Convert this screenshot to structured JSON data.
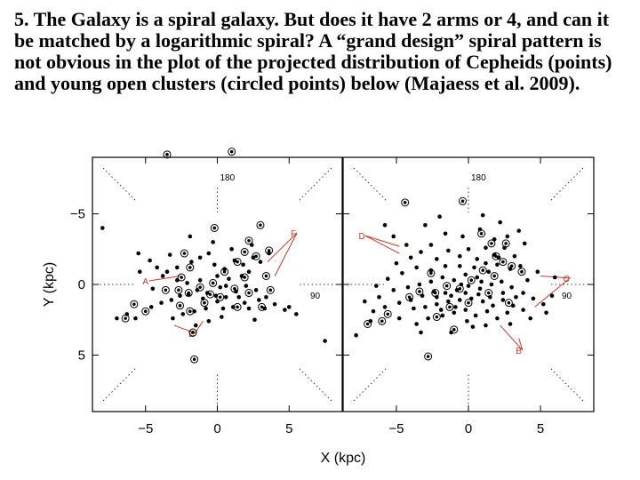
{
  "caption": "5. The Galaxy is a spiral galaxy. But does it have 2 arms or 4, and can it be matched by a logarithmic spiral? A “grand design” spiral pattern is not obvious in the plot of the projected distribution of Cepheids (points) and young open clusters (circled points) below (Majaess et al. 2009).",
  "chart_data": {
    "type": "scatter",
    "xlabel": "X (kpc)",
    "ylabel": "Y (kpc)",
    "xlim": [
      -8.7,
      8.7
    ],
    "ylim": [
      -9,
      9
    ],
    "y_axis_inverted": true,
    "xticks": [
      "−5",
      "0",
      "5"
    ],
    "yticks": [
      "−5",
      "0",
      "5"
    ],
    "xtick_values": [
      -5,
      0,
      5
    ],
    "ytick_values": [
      -5,
      0,
      5
    ],
    "panels": [
      {
        "name": "left",
        "direction_labels": [
          "180",
          "90"
        ],
        "feature_labels": [
          {
            "text": "F",
            "x": 5.3,
            "y": -3.4,
            "line_to": [
              [
                3.5,
                -1.6
              ],
              [
                4.0,
                -0.6
              ]
            ]
          },
          {
            "text": "A",
            "x": -5.0,
            "y": 0.0,
            "line_to": [
              [
                -2.6,
                -0.6
              ]
            ]
          },
          {
            "text": "E",
            "x": -1.8,
            "y": 3.7,
            "line_to": [
              [
                -1.0,
                2.6
              ],
              [
                -3.0,
                2.9
              ]
            ]
          }
        ],
        "cepheids": [
          [
            -8.0,
            -4.0
          ],
          [
            -5.5,
            -2.2
          ],
          [
            -4.7,
            -1.7
          ],
          [
            -3.3,
            -2.1
          ],
          [
            -4.2,
            -1.2
          ],
          [
            -3.5,
            -0.9
          ],
          [
            -2.8,
            -0.3
          ],
          [
            -1.8,
            -1.6
          ],
          [
            -1.2,
            -1.9
          ],
          [
            -0.6,
            -2.2
          ],
          [
            -0.2,
            -1.4
          ],
          [
            0.5,
            -1.1
          ],
          [
            1.2,
            -1.7
          ],
          [
            1.8,
            -1.4
          ],
          [
            2.5,
            -1.9
          ],
          [
            3.0,
            -1.6
          ],
          [
            2.2,
            -0.9
          ],
          [
            1.7,
            -0.6
          ],
          [
            0.8,
            -0.4
          ],
          [
            0.2,
            0.2
          ],
          [
            -0.7,
            0.6
          ],
          [
            -1.4,
            0.4
          ],
          [
            -2.0,
            0.7
          ],
          [
            -2.6,
            0.8
          ],
          [
            -3.2,
            1.1
          ],
          [
            -3.9,
            1.3
          ],
          [
            -4.6,
            1.6
          ],
          [
            -5.7,
            2.4
          ],
          [
            -6.3,
            2.1
          ],
          [
            -7.0,
            2.4
          ],
          [
            -3.1,
            2.4
          ],
          [
            -2.4,
            2.1
          ],
          [
            -1.6,
            1.9
          ],
          [
            -0.8,
            1.7
          ],
          [
            0.0,
            1.2
          ],
          [
            0.6,
            0.9
          ],
          [
            1.3,
            0.5
          ],
          [
            2.0,
            0.1
          ],
          [
            2.7,
            0.4
          ],
          [
            3.4,
            0.9
          ],
          [
            4.0,
            1.4
          ],
          [
            4.7,
            1.8
          ],
          [
            5.0,
            1.6
          ],
          [
            5.5,
            2.1
          ],
          [
            1.1,
            1.6
          ],
          [
            1.9,
            1.3
          ],
          [
            0.3,
            2.3
          ],
          [
            -0.6,
            2.6
          ],
          [
            -1.5,
            2.9
          ],
          [
            2.6,
            2.5
          ],
          [
            3.3,
            1.7
          ],
          [
            -2.1,
            -0.1
          ],
          [
            -1.2,
            -0.3
          ],
          [
            0.0,
            -0.6
          ],
          [
            1.0,
            -2.5
          ],
          [
            2.4,
            -2.8
          ],
          [
            3.6,
            -2.2
          ],
          [
            -0.3,
            -3.0
          ],
          [
            -1.9,
            -3.4
          ],
          [
            0.6,
            0.1
          ],
          [
            -0.1,
            0.8
          ],
          [
            -2.8,
            -1.2
          ],
          [
            -3.8,
            -0.6
          ],
          [
            1.5,
            0.9
          ],
          [
            2.2,
            1.7
          ],
          [
            2.9,
            1.1
          ],
          [
            -4.5,
            0.3
          ],
          [
            -5.4,
            -0.9
          ],
          [
            -1.0,
            1.0
          ],
          [
            0.4,
            1.7
          ],
          [
            7.5,
            4.0
          ]
        ],
        "clusters": [
          [
            -3.5,
            -9.2
          ],
          [
            1.0,
            -9.4
          ],
          [
            -0.2,
            -4.0
          ],
          [
            3.0,
            -4.2
          ],
          [
            2.2,
            -3.1
          ],
          [
            3.6,
            -2.4
          ],
          [
            2.7,
            -2.0
          ],
          [
            1.9,
            -2.3
          ],
          [
            1.4,
            -1.6
          ],
          [
            -2.3,
            -2.2
          ],
          [
            -1.9,
            -1.2
          ],
          [
            -0.3,
            -0.1
          ],
          [
            0.5,
            -0.9
          ],
          [
            1.9,
            -0.5
          ],
          [
            3.4,
            -0.6
          ],
          [
            3.7,
            0.4
          ],
          [
            2.2,
            0.6
          ],
          [
            1.2,
            0.3
          ],
          [
            0.2,
            0.9
          ],
          [
            -0.5,
            0.7
          ],
          [
            -1.2,
            0.2
          ],
          [
            -2.0,
            0.6
          ],
          [
            -2.7,
            0.4
          ],
          [
            -3.6,
            0.4
          ],
          [
            -1.9,
            1.9
          ],
          [
            -0.9,
            1.3
          ],
          [
            -2.6,
            1.5
          ],
          [
            -5.0,
            1.9
          ],
          [
            -5.8,
            1.4
          ],
          [
            -6.4,
            2.4
          ],
          [
            1.4,
            1.6
          ],
          [
            3.1,
            1.6
          ],
          [
            -1.7,
            3.4
          ],
          [
            -2.5,
            -0.5
          ],
          [
            -1.6,
            5.3
          ]
        ]
      },
      {
        "name": "right",
        "direction_labels": [
          "180",
          "90"
        ],
        "feature_labels": [
          {
            "text": "D",
            "x": -7.4,
            "y": -3.2,
            "line_to": [
              [
                -4.8,
                -2.7
              ],
              [
                -4.8,
                -2.2
              ]
            ]
          },
          {
            "text": "C",
            "x": 6.8,
            "y": -0.2,
            "line_to": [
              [
                5.0,
                -0.6
              ],
              [
                4.6,
                1.6
              ]
            ]
          },
          {
            "text": "B",
            "x": 3.5,
            "y": 4.9,
            "line_to": [
              [
                2.2,
                2.9
              ],
              [
                3.5,
                3.8
              ]
            ]
          }
        ],
        "cepheids": [
          [
            -5.8,
            -4.2
          ],
          [
            -5.2,
            -3.4
          ],
          [
            -4.3,
            -2.8
          ],
          [
            -3.3,
            -2.3
          ],
          [
            -2.6,
            -2.8
          ],
          [
            -2.2,
            -1.8
          ],
          [
            -1.4,
            -2.4
          ],
          [
            -0.6,
            -2.0
          ],
          [
            0.0,
            -2.5
          ],
          [
            0.6,
            -1.8
          ],
          [
            1.2,
            -2.6
          ],
          [
            1.8,
            -2.1
          ],
          [
            2.5,
            -2.6
          ],
          [
            3.2,
            -2.0
          ],
          [
            2.9,
            -1.1
          ],
          [
            2.0,
            -1.4
          ],
          [
            1.4,
            -0.9
          ],
          [
            0.6,
            -0.5
          ],
          [
            -0.2,
            -0.7
          ],
          [
            -1.0,
            -0.3
          ],
          [
            -1.8,
            -0.5
          ],
          [
            -2.6,
            -0.2
          ],
          [
            -3.4,
            0.0
          ],
          [
            -4.2,
            0.2
          ],
          [
            -5.2,
            0.4
          ],
          [
            -6.2,
            0.9
          ],
          [
            -7.2,
            1.2
          ],
          [
            -6.6,
            1.9
          ],
          [
            -5.8,
            1.6
          ],
          [
            -4.8,
            1.3
          ],
          [
            -4.0,
            1.1
          ],
          [
            -3.2,
            0.8
          ],
          [
            -2.4,
            0.5
          ],
          [
            -1.6,
            0.6
          ],
          [
            -0.8,
            0.4
          ],
          [
            0.0,
            0.1
          ],
          [
            0.8,
            0.3
          ],
          [
            1.6,
            0.0
          ],
          [
            2.3,
            -0.2
          ],
          [
            3.0,
            0.2
          ],
          [
            3.8,
            0.6
          ],
          [
            4.5,
            1.0
          ],
          [
            5.2,
            1.4
          ],
          [
            5.8,
            0.8
          ],
          [
            -3.8,
            1.7
          ],
          [
            -3.0,
            1.6
          ],
          [
            -2.2,
            1.4
          ],
          [
            -1.4,
            1.2
          ],
          [
            -0.6,
            1.1
          ],
          [
            0.2,
            1.0
          ],
          [
            1.0,
            1.2
          ],
          [
            1.7,
            1.5
          ],
          [
            2.4,
            1.1
          ],
          [
            3.1,
            1.5
          ],
          [
            3.8,
            1.8
          ],
          [
            -2.8,
            2.4
          ],
          [
            -1.8,
            2.2
          ],
          [
            -1.0,
            2.0
          ],
          [
            -0.2,
            1.8
          ],
          [
            0.5,
            2.2
          ],
          [
            1.3,
            1.9
          ],
          [
            2.0,
            2.4
          ],
          [
            2.7,
            2.0
          ],
          [
            -0.4,
            -3.4
          ],
          [
            -1.6,
            -3.6
          ],
          [
            0.8,
            -3.9
          ],
          [
            2.2,
            -4.4
          ],
          [
            3.5,
            -3.8
          ],
          [
            -3.6,
            -1.2
          ],
          [
            -4.6,
            -0.8
          ],
          [
            -5.6,
            -0.4
          ],
          [
            -6.4,
            0.1
          ],
          [
            -2.2,
            0.9
          ],
          [
            -1.2,
            0.8
          ],
          [
            -0.2,
            0.6
          ],
          [
            0.7,
            0.7
          ],
          [
            1.5,
            0.9
          ],
          [
            2.4,
            0.6
          ],
          [
            3.3,
            0.9
          ],
          [
            4.1,
            -0.3
          ],
          [
            4.8,
            -0.9
          ],
          [
            1.8,
            -3.2
          ],
          [
            2.7,
            -3.4
          ],
          [
            3.9,
            -2.9
          ],
          [
            -3.0,
            -4.2
          ],
          [
            -2.0,
            -4.8
          ],
          [
            1.0,
            -4.9
          ],
          [
            -4.8,
            2.4
          ],
          [
            -3.6,
            2.8
          ],
          [
            0.3,
            3.0
          ],
          [
            1.2,
            2.9
          ],
          [
            -7.8,
            3.6
          ],
          [
            -2.6,
            -1.0
          ],
          [
            -1.6,
            -1.3
          ],
          [
            -0.6,
            -1.3
          ],
          [
            0.4,
            -1.2
          ],
          [
            1.2,
            -1.5
          ],
          [
            2.1,
            -1.9
          ],
          [
            3.6,
            -1.3
          ],
          [
            -4.0,
            -1.9
          ],
          [
            -5.0,
            -1.5
          ],
          [
            -0.5,
            0.0
          ],
          [
            0.9,
            -0.2
          ],
          [
            -1.9,
            1.8
          ],
          [
            -0.9,
            1.6
          ],
          [
            2.9,
            2.8
          ],
          [
            4.3,
            2.4
          ],
          [
            5.4,
            2.0
          ],
          [
            6.0,
            -0.5
          ],
          [
            -6.8,
            2.6
          ],
          [
            -3.3,
            3.4
          ],
          [
            -1.2,
            3.4
          ],
          [
            -0.1,
            2.6
          ]
        ],
        "clusters": [
          [
            -4.4,
            -5.8
          ],
          [
            -0.4,
            -5.9
          ],
          [
            0.9,
            -3.6
          ],
          [
            1.6,
            -2.9
          ],
          [
            2.6,
            -2.9
          ],
          [
            2.4,
            -1.6
          ],
          [
            3.0,
            -1.3
          ],
          [
            3.7,
            -0.9
          ],
          [
            1.8,
            -0.6
          ],
          [
            1.0,
            -1.0
          ],
          [
            0.2,
            -0.3
          ],
          [
            -0.6,
            0.3
          ],
          [
            -1.5,
            0.1
          ],
          [
            -2.3,
            0.6
          ],
          [
            -3.4,
            0.5
          ],
          [
            -4.1,
            0.9
          ],
          [
            -5.6,
            2.1
          ],
          [
            -6.0,
            2.6
          ],
          [
            -7.0,
            2.8
          ],
          [
            -2.2,
            2.3
          ],
          [
            -1.3,
            1.6
          ],
          [
            0.0,
            1.3
          ],
          [
            1.4,
            0.6
          ],
          [
            2.8,
            1.3
          ],
          [
            -1.0,
            3.2
          ],
          [
            -2.8,
            5.1
          ],
          [
            1.9,
            -2.0
          ],
          [
            -2.6,
            -0.8
          ]
        ]
      }
    ]
  }
}
